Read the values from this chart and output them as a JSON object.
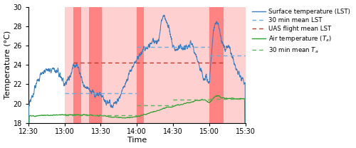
{
  "xlabel": "Time",
  "ylabel": "Temperature (°C)",
  "ylim": [
    18,
    30
  ],
  "yticks": [
    18,
    20,
    22,
    24,
    26,
    28,
    30
  ],
  "xtick_labels": [
    "12:30",
    "13:00",
    "13:30",
    "14:00",
    "14:30",
    "15:00",
    "15:30"
  ],
  "xtick_mins": [
    0,
    30,
    60,
    90,
    120,
    150,
    180
  ],
  "lst_color": "#3a7dbf",
  "ta_color": "#2ca02c",
  "mean_lst_color": "#6aaee0",
  "uas_mean_lst_color": "#c0392b",
  "mean_ta_color": "#5ab55a",
  "light_red_alpha": 0.25,
  "dark_red_alpha": 0.55,
  "ec_intervals": [
    {
      "start": 30,
      "end": 60,
      "mean_lst": 21.1
    },
    {
      "start": 60,
      "end": 90,
      "mean_lst": 21.1
    },
    {
      "start": 90,
      "end": 120,
      "mean_lst": 25.85
    },
    {
      "start": 120,
      "end": 150,
      "mean_lst": 25.85
    },
    {
      "start": 150,
      "end": 180,
      "mean_lst": 25.0
    }
  ],
  "uas_flights": [
    {
      "start": 37,
      "end": 44
    },
    {
      "start": 50,
      "end": 61
    },
    {
      "start": 90,
      "end": 96
    },
    {
      "start": 150,
      "end": 162
    }
  ],
  "uas_mean_lst": 24.2,
  "ta_interval_means": [
    {
      "start": 30,
      "end": 60,
      "mean": 18.78
    },
    {
      "start": 60,
      "end": 90,
      "mean": 18.78
    },
    {
      "start": 90,
      "end": 120,
      "mean": 19.85
    },
    {
      "start": 120,
      "end": 150,
      "mean": 20.4
    },
    {
      "start": 150,
      "end": 180,
      "mean": 20.5
    }
  ]
}
